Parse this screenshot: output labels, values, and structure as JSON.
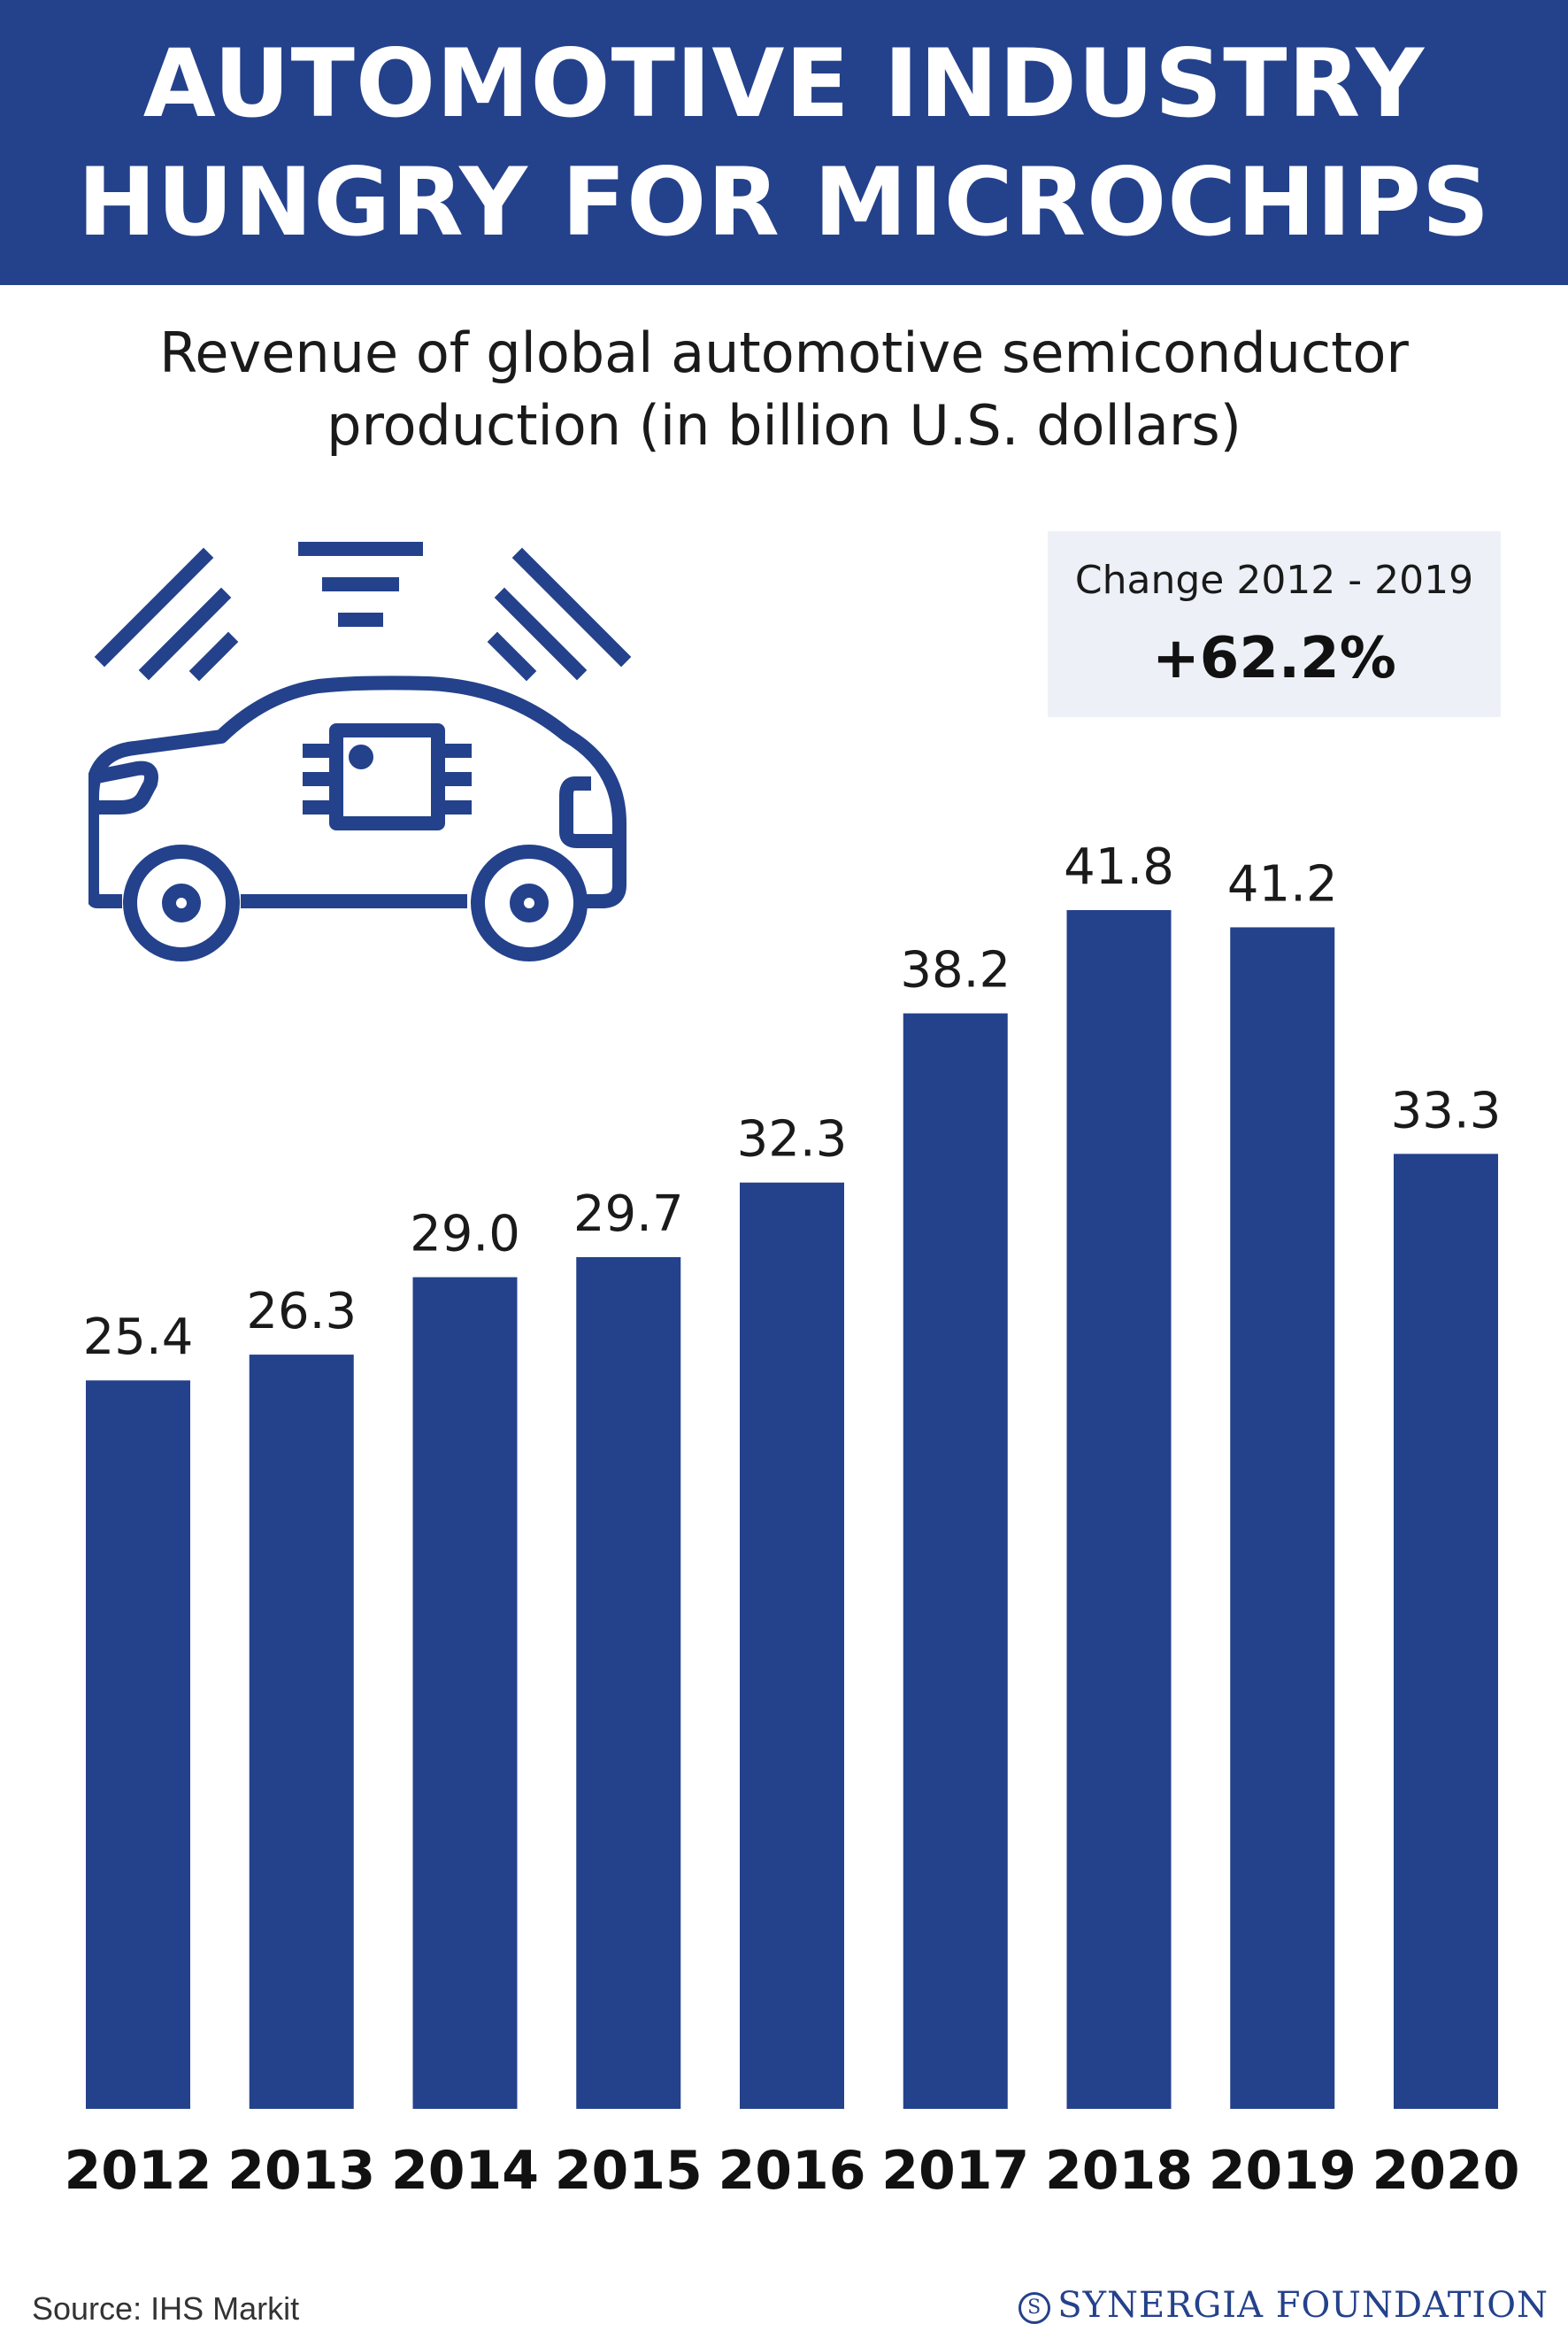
{
  "header": {
    "title_line1": "AUTOMOTIVE INDUSTRY",
    "title_line2": "HUNGRY FOR MICROCHIPS"
  },
  "change_box": {
    "label": "Change 2012 - 2019",
    "value": "+62.2%"
  },
  "footer": {
    "source": "Source: IHS Markit",
    "brand": "SYNERGIA FOUNDATION",
    "brand_mark": "S"
  },
  "icons": {
    "car": "car-chip-icon",
    "signal": "signal-waves-icon"
  },
  "colors": {
    "brand_blue": "#24418b",
    "bar": "#24418b",
    "box_bg": "#edf1f7"
  },
  "chart_data": {
    "type": "bar",
    "title": "Revenue of global automotive semiconductor production (in billion U.S. dollars)",
    "title_lines": [
      "Revenue of global automotive semiconductor",
      "production (in billion U.S. dollars)"
    ],
    "categories": [
      "2012",
      "2013",
      "2014",
      "2015",
      "2016",
      "2017",
      "2018",
      "2019",
      "2020"
    ],
    "values": [
      25.4,
      26.3,
      29.0,
      29.7,
      32.3,
      38.2,
      41.8,
      41.2,
      33.3
    ],
    "value_labels": [
      "25.4",
      "26.3",
      "29.0",
      "29.7",
      "32.3",
      "38.2",
      "41.8",
      "41.2",
      "33.3"
    ],
    "xlabel": "",
    "ylabel": "",
    "ylim": [
      0,
      41.8
    ],
    "grid": false,
    "legend": "none"
  }
}
